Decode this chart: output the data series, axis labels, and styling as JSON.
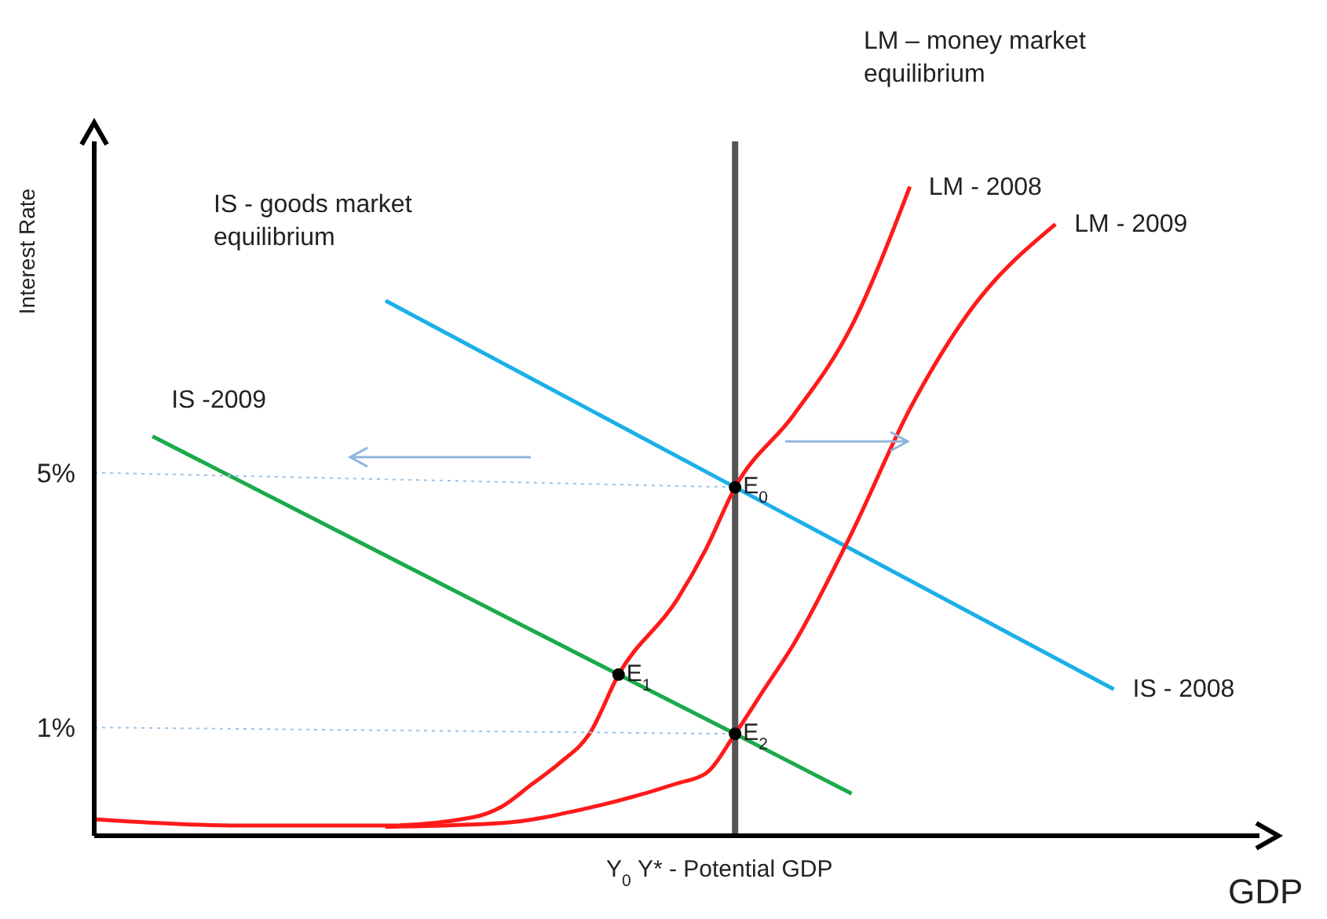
{
  "chart_data": {
    "type": "line",
    "xlabel": "GDP",
    "ylabel": "Interest Rate",
    "categories": [
      null,
      null,
      null,
      null,
      null,
      null,
      null,
      null,
      null,
      null,
      null,
      null,
      null,
      null,
      null,
      null,
      null,
      null,
      "Y$_{0}$",
      null,
      null,
      null,
      "Y* - Potential GDP",
      null,
      null,
      null,
      null,
      null,
      null,
      null,
      null,
      null,
      null,
      null,
      null,
      null,
      null,
      null,
      null,
      null,
      null
    ],
    "ylim": [
      -0.7,
      10.2
    ],
    "yticks": [
      {
        "value": 5,
        "label": "5%"
      },
      {
        "value": 1,
        "label": "1%"
      }
    ],
    "series": [
      {
        "name": "IS - 2008",
        "color": "#1ab0e8",
        "values": [
          null,
          null,
          null,
          null,
          null,
          null,
          null,
          null,
          null,
          null,
          7.7,
          null,
          null,
          null,
          null,
          null,
          null,
          null,
          null,
          null,
          null,
          null,
          4.77,
          null,
          null,
          null,
          null,
          null,
          null,
          null,
          null,
          null,
          null,
          null,
          null,
          1.6,
          null,
          null,
          null,
          null,
          null
        ]
      },
      {
        "name": "IS -2009",
        "color": "#1aaa4a",
        "values": [
          null,
          null,
          5.57,
          null,
          null,
          null,
          null,
          null,
          null,
          null,
          null,
          null,
          null,
          null,
          null,
          null,
          null,
          null,
          1.83,
          null,
          null,
          null,
          0.9,
          null,
          null,
          null,
          -0.04,
          null,
          null,
          null,
          null,
          null,
          null,
          null,
          null,
          null,
          null,
          null,
          null,
          null,
          null
        ]
      },
      {
        "name": "LM - 2008",
        "color": "#ff1a1a",
        "values": [
          -0.44,
          null,
          null,
          null,
          null,
          -0.54,
          null,
          null,
          null,
          null,
          -0.54,
          null,
          null,
          -0.41,
          -0.24,
          0.1,
          0.45,
          0.9,
          1.83,
          null,
          3.0,
          3.8,
          4.77,
          null,
          5.9,
          null,
          7.3,
          null,
          9.49,
          null,
          null,
          null,
          null,
          null,
          null,
          null,
          null,
          null,
          null,
          null,
          null
        ]
      },
      {
        "name": "LM - 2009",
        "color": "#ff1a1a",
        "values": [
          null,
          null,
          null,
          null,
          null,
          null,
          null,
          null,
          null,
          null,
          -0.56,
          null,
          null,
          null,
          -0.5,
          null,
          null,
          -0.26,
          null,
          null,
          0.12,
          0.28,
          0.9,
          1.6,
          2.3,
          null,
          4.05,
          null,
          6.0,
          null,
          7.5,
          null,
          null,
          8.9,
          null,
          null,
          null,
          null,
          null,
          null,
          null
        ]
      },
      {
        "color": "#9dc3e6",
        "line_style": "dotted",
        "values": [
          5,
          null,
          null,
          null,
          null,
          null,
          null,
          null,
          null,
          null,
          null,
          null,
          null,
          null,
          null,
          null,
          null,
          null,
          null,
          null,
          null,
          null,
          4.77,
          null,
          null,
          null,
          null,
          null,
          null,
          null,
          null,
          null,
          null,
          null,
          null,
          null,
          null,
          null,
          null,
          null,
          null
        ]
      },
      {
        "color": "#9dc3e6",
        "line_style": "dotted",
        "values": [
          1,
          null,
          null,
          null,
          null,
          null,
          null,
          null,
          null,
          null,
          null,
          null,
          null,
          null,
          null,
          null,
          null,
          null,
          null,
          null,
          null,
          null,
          0.9,
          null,
          null,
          null,
          null,
          null,
          null,
          null,
          null,
          null,
          null,
          null,
          null,
          null,
          null,
          null,
          null,
          null,
          null
        ]
      },
      {
        "type": "scatter",
        "color": "#000000",
        "marker": "circle",
        "values": [
          null,
          null,
          null,
          null,
          null,
          null,
          null,
          null,
          null,
          null,
          null,
          null,
          null,
          null,
          null,
          null,
          null,
          null,
          1.83,
          null,
          null,
          null,
          4.77,
          null,
          null,
          null,
          null,
          null,
          null,
          null,
          null,
          null,
          null,
          null,
          null,
          null,
          null,
          null,
          null,
          null,
          null
        ]
      },
      {
        "type": "scatter",
        "color": "#000000",
        "marker": "circle",
        "values": [
          null,
          null,
          null,
          null,
          null,
          null,
          null,
          null,
          null,
          null,
          null,
          null,
          null,
          null,
          null,
          null,
          null,
          null,
          null,
          null,
          null,
          null,
          0.9,
          null,
          null,
          null,
          null,
          null,
          null,
          null,
          null,
          null,
          null,
          null,
          null,
          null,
          null,
          null,
          null,
          null,
          null
        ]
      }
    ],
    "ref_lines": [
      {
        "axis": "x",
        "value": "Y* - Potential GDP",
        "color": "#555555"
      }
    ],
    "annotations": [
      "LM – money market equilibrium",
      "IS  - goods market equilibrium",
      {
        "text": "E$_{0}$",
        "x": "Y* - Potential GDP",
        "y": 4.77
      },
      {
        "text": "E$_{1}$",
        "x": "Y$_{0}$",
        "y": 1.83
      },
      {
        "text": "E$_{2}$",
        "x": "Y* - Potential GDP",
        "y": 0.9
      }
    ]
  }
}
